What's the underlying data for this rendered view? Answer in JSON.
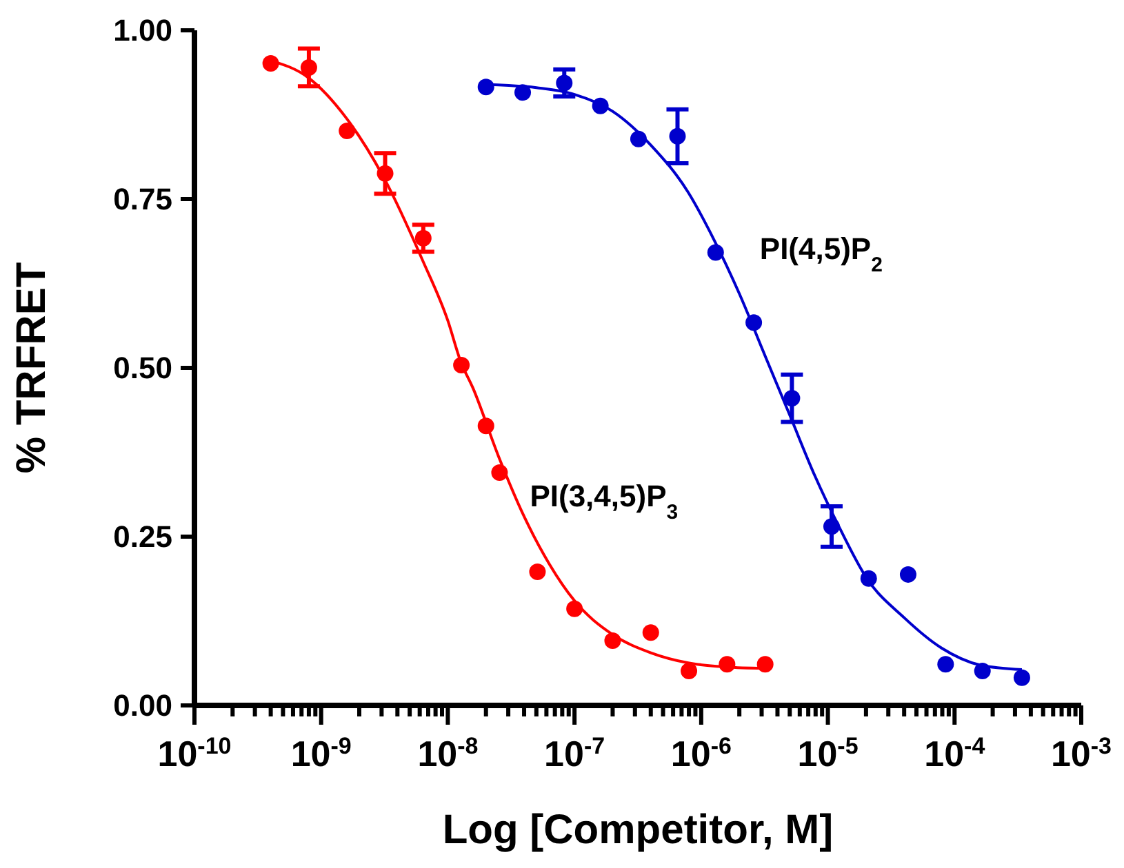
{
  "chart_data": {
    "type": "scatter",
    "xlabel": "Log [Competitor, M]",
    "ylabel": "% TRFRET",
    "log": "x",
    "marker": "circle",
    "xlim": [
      1e-10,
      0.001
    ],
    "xticks": [
      {
        "value": 1e-10,
        "label": "10$^{-10}$"
      },
      {
        "value": 2e-10,
        "label": null
      },
      {
        "value": 3e-10,
        "label": null
      },
      {
        "value": 4e-10,
        "label": null
      },
      {
        "value": 5e-10,
        "label": null
      },
      {
        "value": 6e-10,
        "label": null
      },
      {
        "value": 7e-10,
        "label": null
      },
      {
        "value": 8e-10,
        "label": null
      },
      {
        "value": 9e-10,
        "label": null
      },
      {
        "value": 1e-09,
        "label": "10$^{-9}$"
      },
      {
        "value": 2e-09,
        "label": null
      },
      {
        "value": 3e-09,
        "label": null
      },
      {
        "value": 4e-09,
        "label": null
      },
      {
        "value": 5e-09,
        "label": null
      },
      {
        "value": 6e-09,
        "label": null
      },
      {
        "value": 7e-09,
        "label": null
      },
      {
        "value": 8e-09,
        "label": null
      },
      {
        "value": 9e-09,
        "label": null
      },
      {
        "value": 1e-08,
        "label": "10$^{-8}$"
      },
      {
        "value": 2e-08,
        "label": null
      },
      {
        "value": 3e-08,
        "label": null
      },
      {
        "value": 4e-08,
        "label": null
      },
      {
        "value": 5e-08,
        "label": null
      },
      {
        "value": 6e-08,
        "label": null
      },
      {
        "value": 7e-08,
        "label": null
      },
      {
        "value": 8e-08,
        "label": null
      },
      {
        "value": 9e-08,
        "label": null
      },
      {
        "value": 1e-07,
        "label": "10$^{-7}$"
      },
      {
        "value": 2e-07,
        "label": null
      },
      {
        "value": 3e-07,
        "label": null
      },
      {
        "value": 4e-07,
        "label": null
      },
      {
        "value": 5e-07,
        "label": null
      },
      {
        "value": 6e-07,
        "label": null
      },
      {
        "value": 7e-07,
        "label": null
      },
      {
        "value": 8e-07,
        "label": null
      },
      {
        "value": 9e-07,
        "label": null
      },
      {
        "value": 1e-06,
        "label": "10$^{-6}$"
      },
      {
        "value": 2e-06,
        "label": null
      },
      {
        "value": 3e-06,
        "label": null
      },
      {
        "value": 4e-06,
        "label": null
      },
      {
        "value": 5e-06,
        "label": null
      },
      {
        "value": 6e-06,
        "label": null
      },
      {
        "value": 7e-06,
        "label": null
      },
      {
        "value": 8e-06,
        "label": null
      },
      {
        "value": 9e-06,
        "label": null
      },
      {
        "value": 1e-05,
        "label": "10$^{-5}$"
      },
      {
        "value": 2e-05,
        "label": null
      },
      {
        "value": 3e-05,
        "label": null
      },
      {
        "value": 4e-05,
        "label": null
      },
      {
        "value": 5e-05,
        "label": null
      },
      {
        "value": 6e-05,
        "label": null
      },
      {
        "value": 7e-05,
        "label": null
      },
      {
        "value": 8e-05,
        "label": null
      },
      {
        "value": 9e-05,
        "label": null
      },
      {
        "value": 0.0001,
        "label": "10$^{-4}$"
      },
      {
        "value": 0.0002,
        "label": null
      },
      {
        "value": 0.0003,
        "label": null
      },
      {
        "value": 0.0004,
        "label": null
      },
      {
        "value": 0.0005,
        "label": null
      },
      {
        "value": 0.0006,
        "label": null
      },
      {
        "value": 0.0007,
        "label": null
      },
      {
        "value": 0.0008,
        "label": null
      },
      {
        "value": 0.0009,
        "label": null
      },
      {
        "value": 0.001,
        "label": "10$^{-3}$"
      }
    ],
    "ylim": [
      0,
      1
    ],
    "yticks": [
      {
        "value": 0,
        "label": "0.00"
      },
      {
        "value": 0.25,
        "label": "0.25"
      },
      {
        "value": 0.5,
        "label": "0.50"
      },
      {
        "value": 0.75,
        "label": "0.75"
      },
      {
        "value": 1,
        "label": "1.00"
      }
    ],
    "series": [
      {
        "type": "line",
        "marker": "none",
        "color": "#ff0000",
        "x": [
          4e-10,
          7.9e-10,
          1.58e-09,
          3.16e-09,
          6.3e-09,
          1e-08,
          1.26e-08,
          1.58e-08,
          2.5e-08,
          4e-08,
          6.3e-08,
          1e-07,
          2e-07,
          4e-07,
          7.9e-07,
          1.58e-06,
          3.16e-06
        ],
        "values": [
          0.955,
          0.93,
          0.87,
          0.78,
          0.66,
          0.57,
          0.51,
          0.47,
          0.37,
          0.28,
          0.21,
          0.155,
          0.105,
          0.078,
          0.063,
          0.057,
          0.055
        ]
      },
      {
        "name": "PI(3,4,5)P$_{3}$",
        "color": "#ff0000",
        "x": [
          4e-10,
          8e-10,
          1.6e-09,
          3.2e-09,
          6.4e-09,
          1.28e-08,
          2e-08,
          2.56e-08,
          5.1e-08,
          1e-07,
          2e-07,
          4e-07,
          8e-07,
          1.6e-06,
          3.2e-06
        ],
        "values": [
          0.951,
          0.945,
          0.851,
          0.788,
          0.692,
          0.504,
          0.414,
          0.345,
          0.198,
          0.143,
          0.096,
          0.108,
          0.051,
          0.061,
          0.061
        ],
        "errors": [
          null,
          0.028,
          null,
          0.03,
          0.02,
          null,
          null,
          null,
          null,
          null,
          null,
          null,
          null,
          null,
          null
        ]
      },
      {
        "type": "line",
        "marker": "none",
        "color": "#0000cc",
        "x": [
          2e-08,
          5e-08,
          1e-07,
          2e-07,
          4e-07,
          7.9e-07,
          1.26e-06,
          2e-06,
          3.16e-06,
          5e-06,
          7.9e-06,
          1.26e-05,
          2e-05,
          4e-05,
          7.9e-05,
          0.000158,
          0.00034
        ],
        "values": [
          0.92,
          0.915,
          0.905,
          0.88,
          0.83,
          0.76,
          0.69,
          0.61,
          0.52,
          0.43,
          0.34,
          0.26,
          0.19,
          0.13,
          0.085,
          0.06,
          0.053
        ]
      },
      {
        "name": "PI(4,5)P$_{2}$",
        "color": "#0000cc",
        "x": [
          2e-08,
          3.9e-08,
          8.3e-08,
          1.6e-07,
          3.2e-07,
          6.5e-07,
          1.3e-06,
          2.6e-06,
          5.2e-06,
          1.07e-05,
          2.1e-05,
          4.3e-05,
          8.5e-05,
          0.000166,
          0.00034
        ],
        "values": [
          0.916,
          0.908,
          0.922,
          0.888,
          0.839,
          0.843,
          0.671,
          0.567,
          0.455,
          0.265,
          0.188,
          0.194,
          0.061,
          0.051,
          0.041
        ],
        "errors": [
          null,
          null,
          0.02,
          null,
          null,
          0.04,
          null,
          null,
          0.035,
          0.03,
          null,
          null,
          null,
          null,
          null
        ]
      }
    ]
  }
}
